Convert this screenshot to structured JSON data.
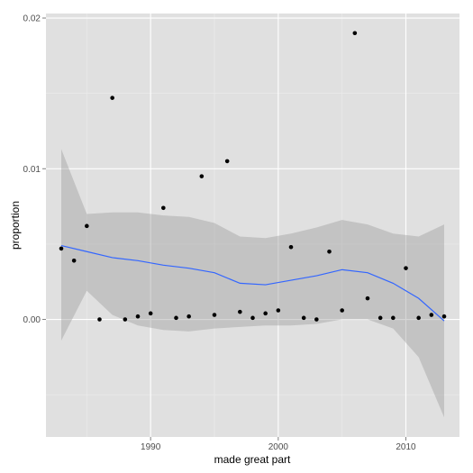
{
  "chart_data": {
    "type": "scatter",
    "title": "",
    "xlabel": "made great part",
    "ylabel": "proportion",
    "xlim": [
      1981.8,
      2014.2
    ],
    "ylim": [
      -0.0078,
      0.0203
    ],
    "x_ticks": [
      1990,
      2000,
      2010
    ],
    "x_tick_labels": [
      "1990",
      "2000",
      "2010"
    ],
    "y_ticks": [
      0.0,
      0.01,
      0.02
    ],
    "y_tick_labels": [
      "0.00",
      "0.01",
      "0.02"
    ],
    "grid": true,
    "legend": "none",
    "colors": {
      "panel_bg": "#e0e0e0",
      "grid_major": "#ffffff",
      "grid_minor": "#ececec",
      "points": "#000000",
      "smooth_line": "#3366ff",
      "confidence_band": "#999999"
    },
    "points": {
      "x": [
        1983,
        1984,
        1985,
        1986,
        1987,
        1988,
        1989,
        1990,
        1991,
        1992,
        1993,
        1994,
        1995,
        1996,
        1997,
        1998,
        1999,
        2000,
        2001,
        2002,
        2003,
        2004,
        2005,
        2006,
        2007,
        2008,
        2009,
        2010,
        2011,
        2012,
        2013
      ],
      "y": [
        0.0047,
        0.0039,
        0.0062,
        0.0,
        0.0147,
        0.0,
        0.0002,
        0.0004,
        0.0074,
        0.0001,
        0.0002,
        0.0095,
        0.0003,
        0.0105,
        0.0005,
        0.0001,
        0.0004,
        0.0006,
        0.0048,
        0.0001,
        0.0,
        0.0045,
        0.0006,
        0.019,
        0.0014,
        0.0001,
        0.0001,
        0.0034,
        0.0001,
        0.0003,
        0.0002
      ]
    },
    "smooth": {
      "x": [
        1983,
        1985,
        1987,
        1989,
        1991,
        1993,
        1995,
        1997,
        1999,
        2001,
        2003,
        2005,
        2007,
        2009,
        2011,
        2013
      ],
      "y": [
        0.0049,
        0.0045,
        0.0041,
        0.0039,
        0.0036,
        0.0034,
        0.0031,
        0.0024,
        0.0023,
        0.0026,
        0.0029,
        0.0033,
        0.0031,
        0.0024,
        0.0014,
        -0.0001
      ],
      "lower": [
        -0.0014,
        0.0019,
        0.0003,
        -0.0004,
        -0.0007,
        -0.0008,
        -0.0006,
        -0.0005,
        -0.0004,
        -0.0004,
        -0.0003,
        0.0,
        0.0,
        -0.0006,
        -0.0025,
        -0.0065
      ],
      "upper": [
        0.0113,
        0.007,
        0.0071,
        0.0071,
        0.0069,
        0.0068,
        0.0064,
        0.0055,
        0.0054,
        0.0057,
        0.0061,
        0.0066,
        0.0063,
        0.0057,
        0.0055,
        0.0063
      ]
    }
  }
}
